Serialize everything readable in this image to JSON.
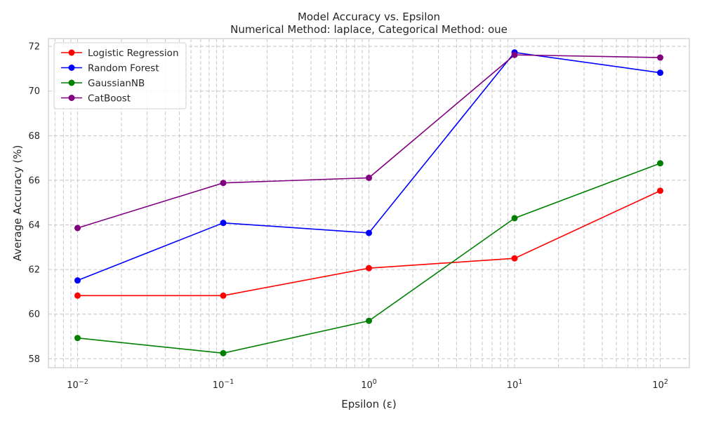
{
  "chart_data": {
    "type": "line",
    "title": "Model Accuracy vs. Epsilon",
    "subtitle": "Numerical Method: laplace, Categorical Method: oue",
    "xlabel": "Epsilon (ε)",
    "ylabel": "Average Accuracy (%)",
    "x_scale": "log",
    "x": [
      0.01,
      0.1,
      1,
      10,
      100
    ],
    "x_tick_labels": [
      {
        "base": "10",
        "exp": "−2"
      },
      {
        "base": "10",
        "exp": "−1"
      },
      {
        "base": "10",
        "exp": "0"
      },
      {
        "base": "10",
        "exp": "1"
      },
      {
        "base": "10",
        "exp": "2"
      }
    ],
    "y_ticks": [
      "58",
      "60",
      "62",
      "64",
      "66",
      "68",
      "70",
      "72"
    ],
    "ylim": [
      57.6,
      72.35
    ],
    "xlim_log10": [
      -2.2,
      2.2
    ],
    "grid": true,
    "legend_position": "top-left",
    "series": [
      {
        "name": "Logistic Regression",
        "color": "#ff0000",
        "values": [
          60.83,
          60.83,
          62.06,
          62.5,
          65.53
        ]
      },
      {
        "name": "Random Forest",
        "color": "#0000ff",
        "values": [
          61.51,
          64.09,
          63.64,
          71.73,
          70.82
        ]
      },
      {
        "name": "GaussianNB",
        "color": "#008000",
        "values": [
          58.93,
          58.25,
          59.7,
          64.3,
          66.76
        ]
      },
      {
        "name": "CatBoost",
        "color": "#800080",
        "values": [
          63.86,
          65.88,
          66.11,
          71.62,
          71.5
        ]
      }
    ]
  }
}
